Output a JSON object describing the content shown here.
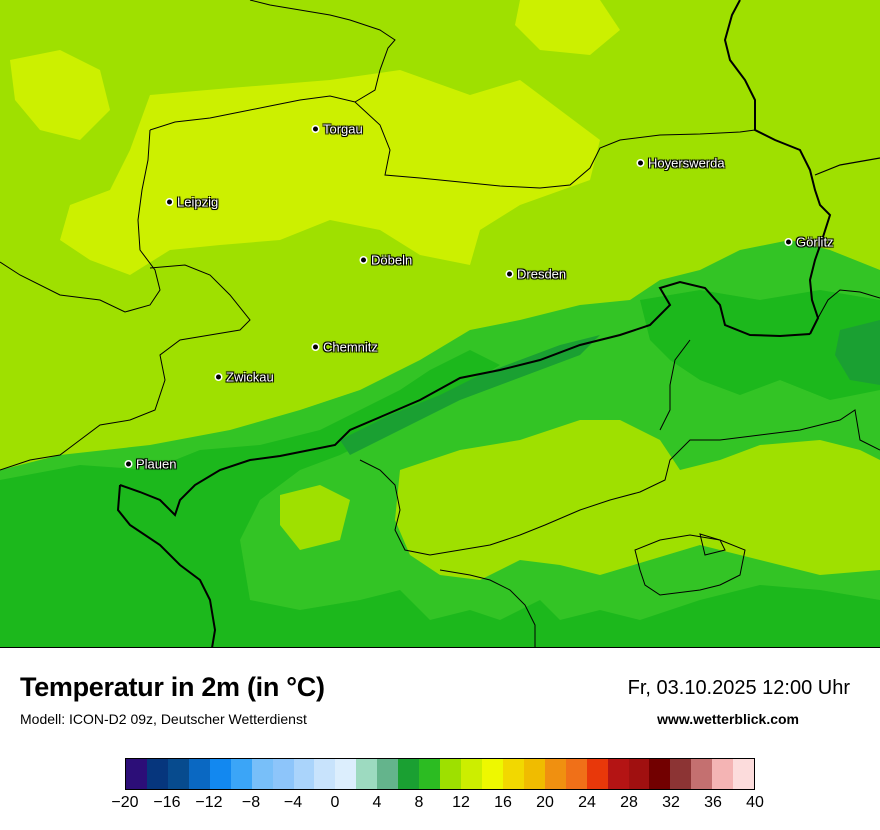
{
  "map": {
    "cities": [
      {
        "name": "Torgau"
      },
      {
        "name": "Leipzig"
      },
      {
        "name": "Hoyerswerda"
      },
      {
        "name": "Görlitz"
      },
      {
        "name": "Döbeln"
      },
      {
        "name": "Dresden"
      },
      {
        "name": "Chemnitz"
      },
      {
        "name": "Zwickau"
      },
      {
        "name": "Plauen"
      }
    ],
    "colors": {
      "cold_green": "#1cb81c",
      "mid_green": "#33c425",
      "light_green": "#9fe000",
      "yellow_green": "#ccf000"
    }
  },
  "footer": {
    "title": "Temperatur in 2m (in °C)",
    "model": "Modell: ICON-D2 09z, Deutscher Wetterdienst",
    "datetime": "Fr, 03.10.2025 12:00 Uhr",
    "site": "www.wetterblick.com"
  },
  "legend": {
    "unit": "°C",
    "min": -20,
    "max": 40,
    "colors": [
      "#2c0e78",
      "#06367d",
      "#074b8e",
      "#0a68c2",
      "#1288f0",
      "#3ba5f7",
      "#78bff9",
      "#8dc5fa",
      "#aad4fb",
      "#c8e3fc",
      "#dceefd",
      "#9ddac0",
      "#64b48c",
      "#1aa032",
      "#2cbc22",
      "#9ee000",
      "#ccee00",
      "#eef800",
      "#f2d800",
      "#f0bc00",
      "#f09010",
      "#f07018",
      "#e8380a",
      "#b41414",
      "#a01010",
      "#720000",
      "#8c3434",
      "#c47070",
      "#f4b4b4",
      "#fcdcdc"
    ],
    "tick_labels": [
      "−20",
      "−16",
      "−12",
      "−8",
      "−4",
      "0",
      "4",
      "8",
      "12",
      "16",
      "20",
      "24",
      "28",
      "32",
      "36",
      "40"
    ]
  }
}
